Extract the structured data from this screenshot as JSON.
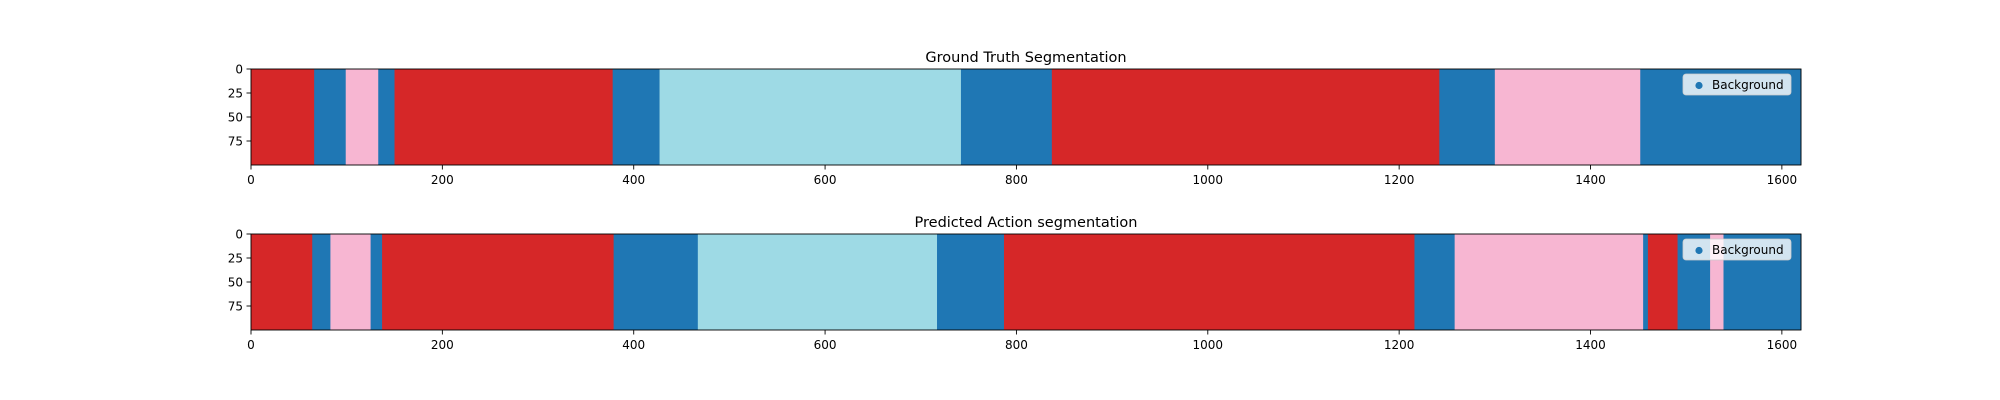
{
  "chart_data": [
    {
      "type": "segmentation",
      "title": "Ground Truth Segmentation",
      "xlim": [
        0,
        1620
      ],
      "ylim": [
        0,
        100
      ],
      "xticks": [
        0,
        200,
        400,
        600,
        800,
        1000,
        1200,
        1400,
        1600
      ],
      "yticks": [
        0,
        25,
        50,
        75
      ],
      "legend": {
        "label": "Background",
        "color": "#1f77b4",
        "position": "top-right"
      },
      "segments": [
        {
          "start": 0,
          "end": 66,
          "color": "#d62728"
        },
        {
          "start": 66,
          "end": 99,
          "color": "#1f77b4"
        },
        {
          "start": 99,
          "end": 133,
          "color": "#f7b6d2"
        },
        {
          "start": 133,
          "end": 150,
          "color": "#1f77b4"
        },
        {
          "start": 150,
          "end": 378,
          "color": "#d62728"
        },
        {
          "start": 378,
          "end": 427,
          "color": "#1f77b4"
        },
        {
          "start": 427,
          "end": 742,
          "color": "#9edae5"
        },
        {
          "start": 742,
          "end": 837,
          "color": "#1f77b4"
        },
        {
          "start": 837,
          "end": 1242,
          "color": "#d62728"
        },
        {
          "start": 1242,
          "end": 1300,
          "color": "#1f77b4"
        },
        {
          "start": 1300,
          "end": 1452,
          "color": "#f7b6d2"
        },
        {
          "start": 1452,
          "end": 1620,
          "color": "#1f77b4"
        }
      ]
    },
    {
      "type": "segmentation",
      "title": "Predicted Action segmentation",
      "xlim": [
        0,
        1620
      ],
      "ylim": [
        0,
        100
      ],
      "xticks": [
        0,
        200,
        400,
        600,
        800,
        1000,
        1200,
        1400,
        1600
      ],
      "yticks": [
        0,
        25,
        50,
        75
      ],
      "legend": {
        "label": "Background",
        "color": "#1f77b4",
        "position": "top-right"
      },
      "segments": [
        {
          "start": 0,
          "end": 64,
          "color": "#d62728"
        },
        {
          "start": 64,
          "end": 83,
          "color": "#1f77b4"
        },
        {
          "start": 83,
          "end": 125,
          "color": "#f7b6d2"
        },
        {
          "start": 125,
          "end": 137,
          "color": "#1f77b4"
        },
        {
          "start": 137,
          "end": 379,
          "color": "#d62728"
        },
        {
          "start": 379,
          "end": 467,
          "color": "#1f77b4"
        },
        {
          "start": 467,
          "end": 717,
          "color": "#9edae5"
        },
        {
          "start": 717,
          "end": 787,
          "color": "#1f77b4"
        },
        {
          "start": 787,
          "end": 1216,
          "color": "#d62728"
        },
        {
          "start": 1216,
          "end": 1258,
          "color": "#1f77b4"
        },
        {
          "start": 1258,
          "end": 1455,
          "color": "#f7b6d2"
        },
        {
          "start": 1455,
          "end": 1460,
          "color": "#1f77b4"
        },
        {
          "start": 1460,
          "end": 1491,
          "color": "#d62728"
        },
        {
          "start": 1491,
          "end": 1525,
          "color": "#1f77b4"
        },
        {
          "start": 1525,
          "end": 1539,
          "color": "#f7b6d2"
        },
        {
          "start": 1539,
          "end": 1620,
          "color": "#1f77b4"
        }
      ]
    }
  ]
}
